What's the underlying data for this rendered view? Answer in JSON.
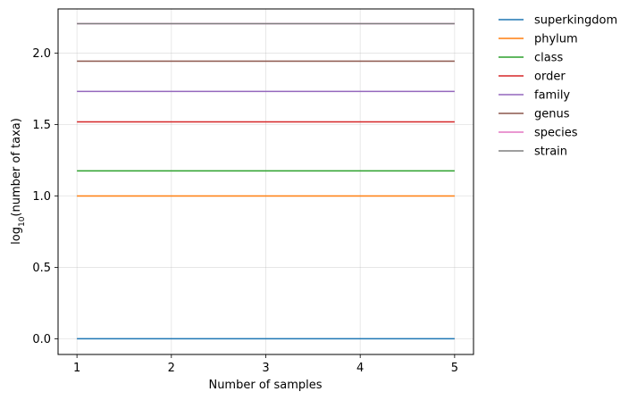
{
  "chart_data": {
    "type": "line",
    "xlabel": "Number of samples",
    "ylabel": {
      "base": "log",
      "subscript": "10",
      "rest": "(number of taxa)"
    },
    "x": [
      1,
      2,
      3,
      4,
      5
    ],
    "xlim": [
      0.8,
      5.2
    ],
    "ylim": [
      -0.11,
      2.31
    ],
    "xticks": [
      1,
      2,
      3,
      4,
      5
    ],
    "yticks": [
      0.0,
      0.5,
      1.0,
      1.5,
      2.0
    ],
    "ytick_labels": [
      "0.0",
      "0.5",
      "1.0",
      "1.5",
      "2.0"
    ],
    "grid": true,
    "legend_position": "outside-right",
    "series": [
      {
        "name": "superkingdom",
        "color": "#1f77b4",
        "values": [
          0.0,
          0.0,
          0.0,
          0.0,
          0.0
        ]
      },
      {
        "name": "phylum",
        "color": "#ff7f0e",
        "values": [
          1.0,
          1.0,
          1.0,
          1.0,
          1.0
        ]
      },
      {
        "name": "class",
        "color": "#2ca02c",
        "values": [
          1.176,
          1.176,
          1.176,
          1.176,
          1.176
        ]
      },
      {
        "name": "order",
        "color": "#d62728",
        "values": [
          1.519,
          1.519,
          1.519,
          1.519,
          1.519
        ]
      },
      {
        "name": "family",
        "color": "#9467bd",
        "values": [
          1.732,
          1.732,
          1.732,
          1.732,
          1.732
        ]
      },
      {
        "name": "genus",
        "color": "#8c564b",
        "values": [
          1.944,
          1.944,
          1.944,
          1.944,
          1.944
        ]
      },
      {
        "name": "species",
        "color": "#e377c2",
        "values": [
          2.207,
          2.207,
          2.207,
          2.207,
          2.207
        ]
      },
      {
        "name": "strain",
        "color": "#7f7f7f",
        "values": [
          2.207,
          2.207,
          2.207,
          2.207,
          2.207
        ]
      }
    ]
  }
}
